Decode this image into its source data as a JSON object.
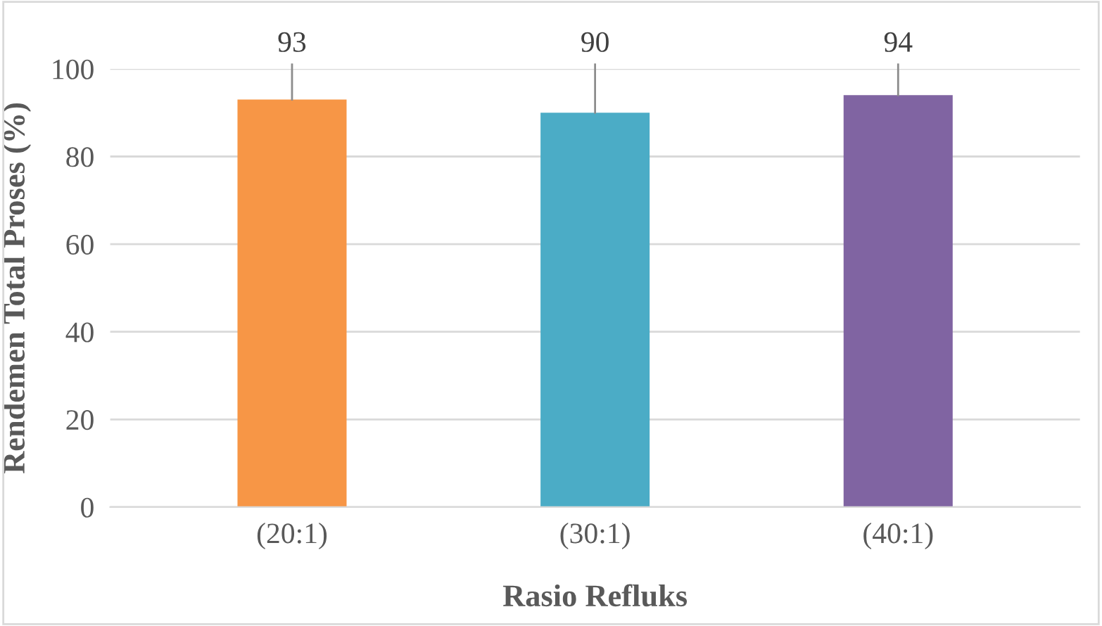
{
  "chart_data": {
    "type": "bar",
    "xlabel": "Rasio Refluks",
    "ylabel": "Rendemen Total Proses (%)",
    "categories": [
      "(20:1)",
      "(30:1)",
      "(40:1)"
    ],
    "values": [
      93,
      90,
      94
    ],
    "colors": [
      "#f79646",
      "#4bacc6",
      "#8064a2"
    ],
    "errors": [
      [
        93,
        101
      ],
      [
        90,
        101
      ],
      [
        94,
        101
      ]
    ],
    "data_labels": true,
    "ylim": [
      0,
      100
    ],
    "yticks": [
      0,
      20,
      40,
      60,
      80,
      100
    ],
    "grid": "y",
    "legend": false
  }
}
